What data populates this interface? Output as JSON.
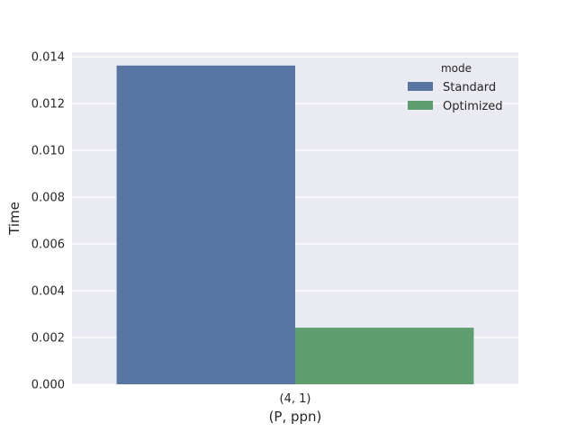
{
  "chart_data": {
    "type": "bar",
    "title": "",
    "xlabel": "(P, ppn)",
    "ylabel": "Time",
    "categories": [
      "(4, 1)"
    ],
    "series": [
      {
        "name": "Standard",
        "values": [
          0.01363
        ],
        "color": "#5875a4"
      },
      {
        "name": "Optimized",
        "values": [
          0.00242
        ],
        "color": "#5f9e6e"
      }
    ],
    "ylim": [
      0,
      0.0142
    ],
    "yticks": [
      {
        "value": 0.0,
        "label": "0.000"
      },
      {
        "value": 0.002,
        "label": "0.002"
      },
      {
        "value": 0.004,
        "label": "0.004"
      },
      {
        "value": 0.006,
        "label": "0.006"
      },
      {
        "value": 0.008,
        "label": "0.008"
      },
      {
        "value": 0.01,
        "label": "0.010"
      },
      {
        "value": 0.012,
        "label": "0.012"
      },
      {
        "value": 0.014,
        "label": "0.014"
      }
    ],
    "grid": true,
    "background": "#eaeaf2",
    "legend": {
      "title": "mode",
      "placement": "top-right"
    }
  }
}
